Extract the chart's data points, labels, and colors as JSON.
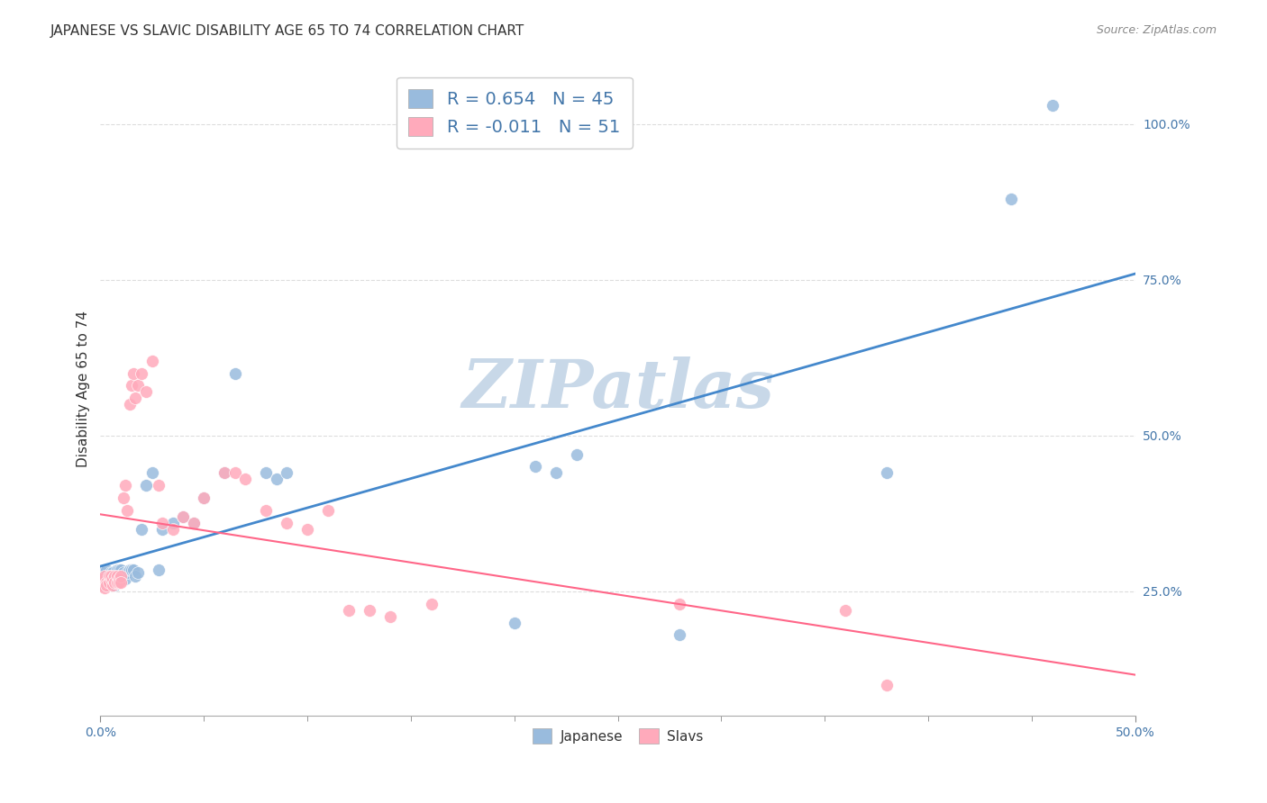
{
  "title": "JAPANESE VS SLAVIC DISABILITY AGE 65 TO 74 CORRELATION CHART",
  "source": "Source: ZipAtlas.com",
  "ylabel": "Disability Age 65 to 74",
  "R_japanese": 0.654,
  "N_japanese": 45,
  "R_slavs": -0.011,
  "N_slavs": 51,
  "japanese_color": "#99BBDD",
  "slavs_color": "#FFAABB",
  "japanese_line_color": "#4488CC",
  "slavs_line_color": "#FF6688",
  "watermark": "ZIPatlas",
  "watermark_color": "#C8D8E8",
  "background_color": "#FFFFFF",
  "japanese_points_x": [
    0.001,
    0.002,
    0.002,
    0.003,
    0.003,
    0.004,
    0.005,
    0.005,
    0.006,
    0.006,
    0.007,
    0.007,
    0.008,
    0.009,
    0.01,
    0.011,
    0.012,
    0.013,
    0.014,
    0.015,
    0.016,
    0.017,
    0.018,
    0.02,
    0.022,
    0.025,
    0.028,
    0.03,
    0.035,
    0.04,
    0.045,
    0.05,
    0.06,
    0.065,
    0.08,
    0.085,
    0.09,
    0.2,
    0.21,
    0.22,
    0.23,
    0.28,
    0.38,
    0.44,
    0.46
  ],
  "japanese_points_y": [
    0.28,
    0.275,
    0.26,
    0.27,
    0.285,
    0.275,
    0.27,
    0.28,
    0.28,
    0.275,
    0.27,
    0.26,
    0.285,
    0.285,
    0.285,
    0.28,
    0.27,
    0.28,
    0.285,
    0.285,
    0.285,
    0.275,
    0.28,
    0.35,
    0.42,
    0.44,
    0.285,
    0.35,
    0.36,
    0.37,
    0.36,
    0.4,
    0.44,
    0.6,
    0.44,
    0.43,
    0.44,
    0.2,
    0.45,
    0.44,
    0.47,
    0.18,
    0.44,
    0.88,
    1.03
  ],
  "slavs_points_x": [
    0.001,
    0.001,
    0.002,
    0.002,
    0.003,
    0.003,
    0.004,
    0.004,
    0.005,
    0.005,
    0.006,
    0.006,
    0.007,
    0.007,
    0.008,
    0.008,
    0.009,
    0.009,
    0.01,
    0.01,
    0.011,
    0.012,
    0.013,
    0.014,
    0.015,
    0.016,
    0.017,
    0.018,
    0.02,
    0.022,
    0.025,
    0.028,
    0.03,
    0.035,
    0.04,
    0.045,
    0.05,
    0.06,
    0.065,
    0.07,
    0.08,
    0.09,
    0.1,
    0.11,
    0.12,
    0.13,
    0.14,
    0.16,
    0.28,
    0.36,
    0.38
  ],
  "slavs_points_y": [
    0.27,
    0.26,
    0.275,
    0.255,
    0.265,
    0.26,
    0.275,
    0.265,
    0.27,
    0.275,
    0.26,
    0.27,
    0.275,
    0.265,
    0.275,
    0.265,
    0.27,
    0.265,
    0.275,
    0.265,
    0.4,
    0.42,
    0.38,
    0.55,
    0.58,
    0.6,
    0.56,
    0.58,
    0.6,
    0.57,
    0.62,
    0.42,
    0.36,
    0.35,
    0.37,
    0.36,
    0.4,
    0.44,
    0.44,
    0.43,
    0.38,
    0.36,
    0.35,
    0.38,
    0.22,
    0.22,
    0.21,
    0.23,
    0.23,
    0.22,
    0.1
  ],
  "xlim": [
    0.0,
    0.5
  ],
  "ylim": [
    0.05,
    1.1
  ],
  "yticks": [
    0.25,
    0.5,
    0.75,
    1.0
  ],
  "ytick_labels": [
    "25.0%",
    "50.0%",
    "75.0%",
    "100.0%"
  ],
  "xtick_minor": [
    0.05,
    0.1,
    0.15,
    0.2,
    0.25,
    0.3,
    0.35,
    0.4,
    0.45
  ],
  "grid_color": "#DDDDDD",
  "grid_linestyle": "--",
  "title_fontsize": 11,
  "source_fontsize": 9,
  "tick_label_fontsize": 10,
  "ylabel_fontsize": 11
}
